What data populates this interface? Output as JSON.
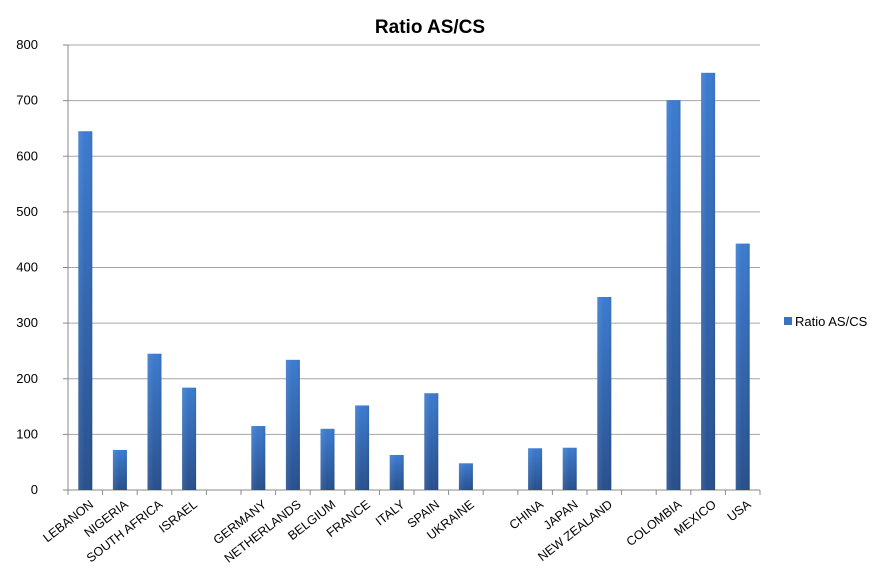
{
  "chart_data": {
    "type": "bar",
    "title": "Ratio AS/CS",
    "xlabel": "",
    "ylabel": "",
    "ylim": [
      0,
      800
    ],
    "yticks": [
      "0",
      "100",
      "200",
      "300",
      "400",
      "500",
      "600",
      "700",
      "800"
    ],
    "grid": true,
    "legend_position": "right",
    "categories": [
      "LEBANON",
      "NIGERIA",
      "SOUTH AFRICA",
      "ISRAEL",
      "",
      "GERMANY",
      "NETHERLANDS",
      "BELGIUM",
      "FRANCE",
      "ITALY",
      "SPAIN",
      "UKRAINE",
      "",
      "CHINA",
      "JAPAN",
      "NEW ZEALAND",
      "",
      "COLOMBIA",
      "MEXICO",
      "USA"
    ],
    "series": [
      {
        "name": "Ratio AS/CS",
        "color": "#3a72c0",
        "values": [
          645,
          72,
          245,
          184,
          null,
          115,
          234,
          110,
          152,
          63,
          174,
          48,
          null,
          75,
          76,
          347,
          null,
          701,
          750,
          443
        ]
      }
    ]
  }
}
